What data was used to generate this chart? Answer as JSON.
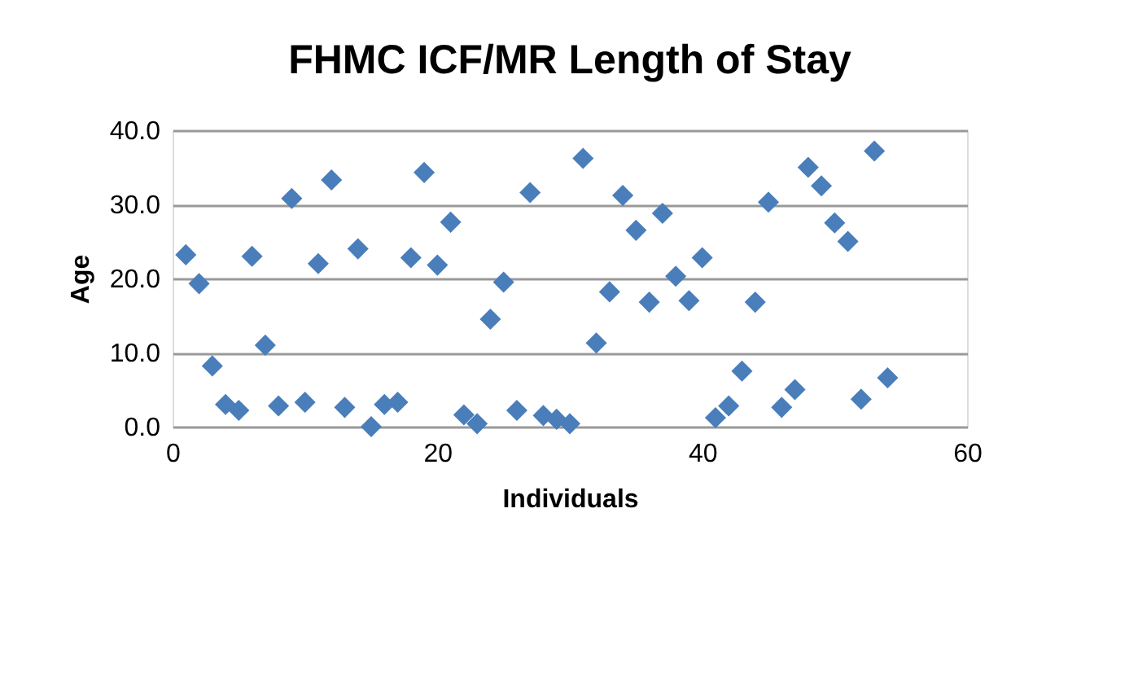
{
  "chart_data": {
    "type": "scatter",
    "title": "FHMC ICF/MR Length of Stay",
    "xlabel": "Individuals",
    "ylabel": "Age",
    "x": [
      1,
      2,
      3,
      4,
      5,
      6,
      7,
      8,
      9,
      10,
      11,
      12,
      13,
      14,
      15,
      16,
      17,
      18,
      19,
      20,
      21,
      22,
      23,
      24,
      25,
      26,
      27,
      28,
      29,
      30,
      31,
      32,
      33,
      34,
      35,
      36,
      37,
      38,
      39,
      40,
      41,
      42,
      43,
      44,
      45,
      46,
      47,
      48,
      49,
      50,
      51,
      52,
      53,
      54
    ],
    "values": [
      23.2,
      19.3,
      8.2,
      3.0,
      2.2,
      23.0,
      11.0,
      2.8,
      30.8,
      3.3,
      22.0,
      33.3,
      2.6,
      24.0,
      0.0,
      3.0,
      3.3,
      22.8,
      34.3,
      21.8,
      27.6,
      1.6,
      0.4,
      14.5,
      19.5,
      2.2,
      31.6,
      1.5,
      1.0,
      0.4,
      36.2,
      11.3,
      18.2,
      31.2,
      26.5,
      16.8,
      28.8,
      20.3,
      17.0,
      22.8,
      1.2,
      2.8,
      7.5,
      16.8,
      30.3,
      2.6,
      5.0,
      35.0,
      32.5,
      27.5,
      25.0,
      3.7,
      37.2,
      6.6
    ],
    "color": "#4a7ebb",
    "marker": "diamond",
    "xlim": [
      0,
      60
    ],
    "xticks": [
      0,
      20,
      40,
      60
    ],
    "ylim": [
      0,
      40
    ],
    "yticks": [
      {
        "value": 0,
        "label": "0.0"
      },
      {
        "value": 10,
        "label": "10.0"
      },
      {
        "value": 20,
        "label": "20.0"
      },
      {
        "value": 30,
        "label": "30.0"
      },
      {
        "value": 40,
        "label": "40.0"
      }
    ],
    "grid": "y"
  }
}
